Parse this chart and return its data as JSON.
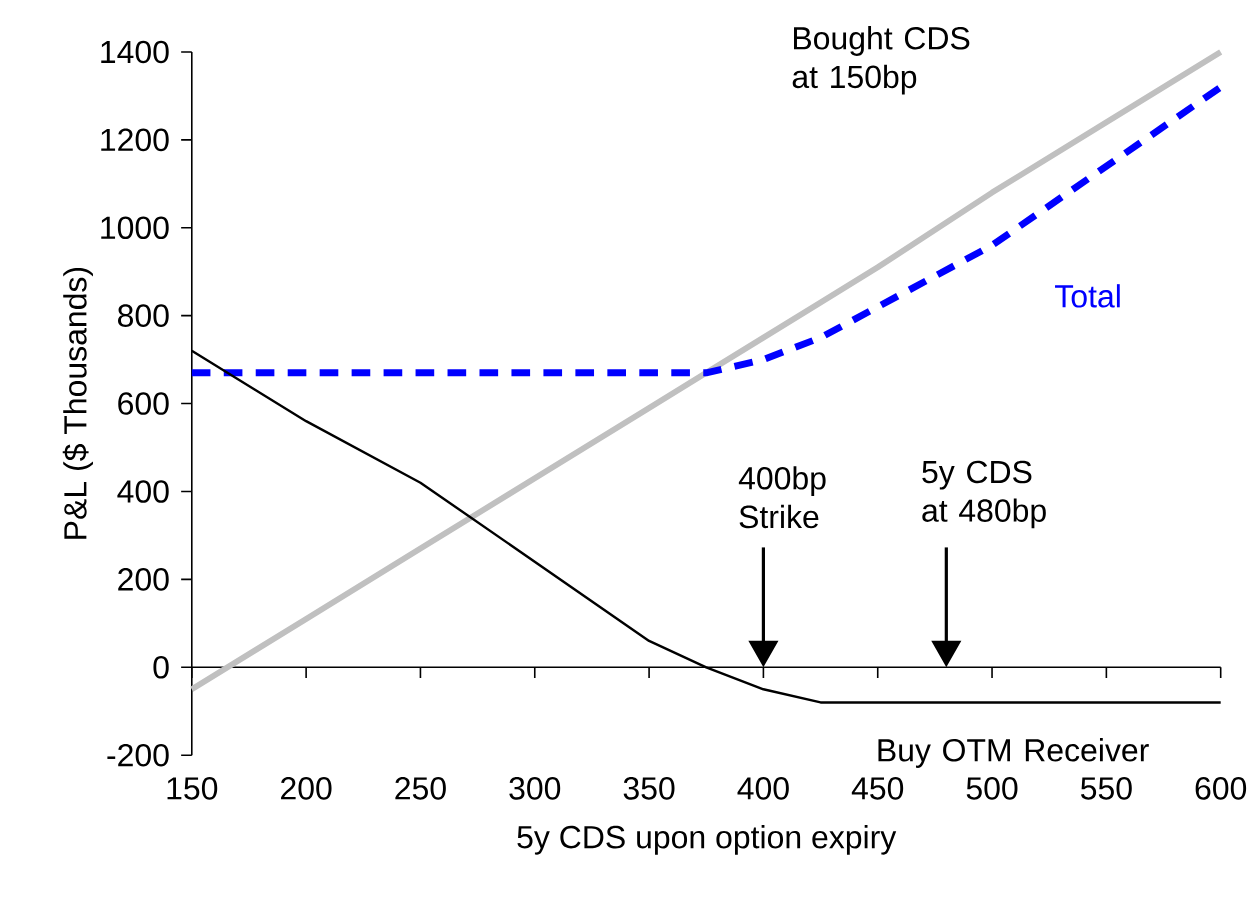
{
  "chart_data": {
    "type": "line",
    "xlabel": "5y CDS upon option expiry",
    "ylabel": "P&L ($ Thousands)",
    "x": [
      150,
      200,
      250,
      300,
      350,
      375,
      400,
      425,
      450,
      500,
      550,
      600
    ],
    "series": [
      {
        "color": "#c0c0c0",
        "line_style": "solid",
        "values": [
          -50,
          110,
          270,
          430,
          590,
          670,
          750,
          830,
          910,
          1080,
          1240,
          1400
        ]
      },
      {
        "name": "Total",
        "color": "#0000ff",
        "line_style": "dashed",
        "values": [
          670,
          670,
          670,
          670,
          670,
          670,
          700,
          750,
          820,
          960,
          1140,
          1320
        ]
      },
      {
        "name": "Buy OTM Receiver",
        "color": "#000000",
        "line_style": "solid",
        "values": [
          720,
          560,
          420,
          240,
          60,
          0,
          -50,
          -80,
          -80,
          -80,
          -80,
          -80
        ]
      }
    ],
    "annotations": [
      "400bp Strike",
      "5y CDS at 480bp",
      "Bought CDS at 150bp"
    ],
    "xlim": [
      150,
      600
    ],
    "ylim": [
      -200,
      1400
    ],
    "xticks": [
      150,
      200,
      250,
      300,
      350,
      400,
      450,
      500,
      550,
      600
    ],
    "yticks": [
      -200,
      0,
      200,
      400,
      600,
      800,
      1000,
      1200,
      1400
    ],
    "legend": false,
    "marker": "none"
  }
}
